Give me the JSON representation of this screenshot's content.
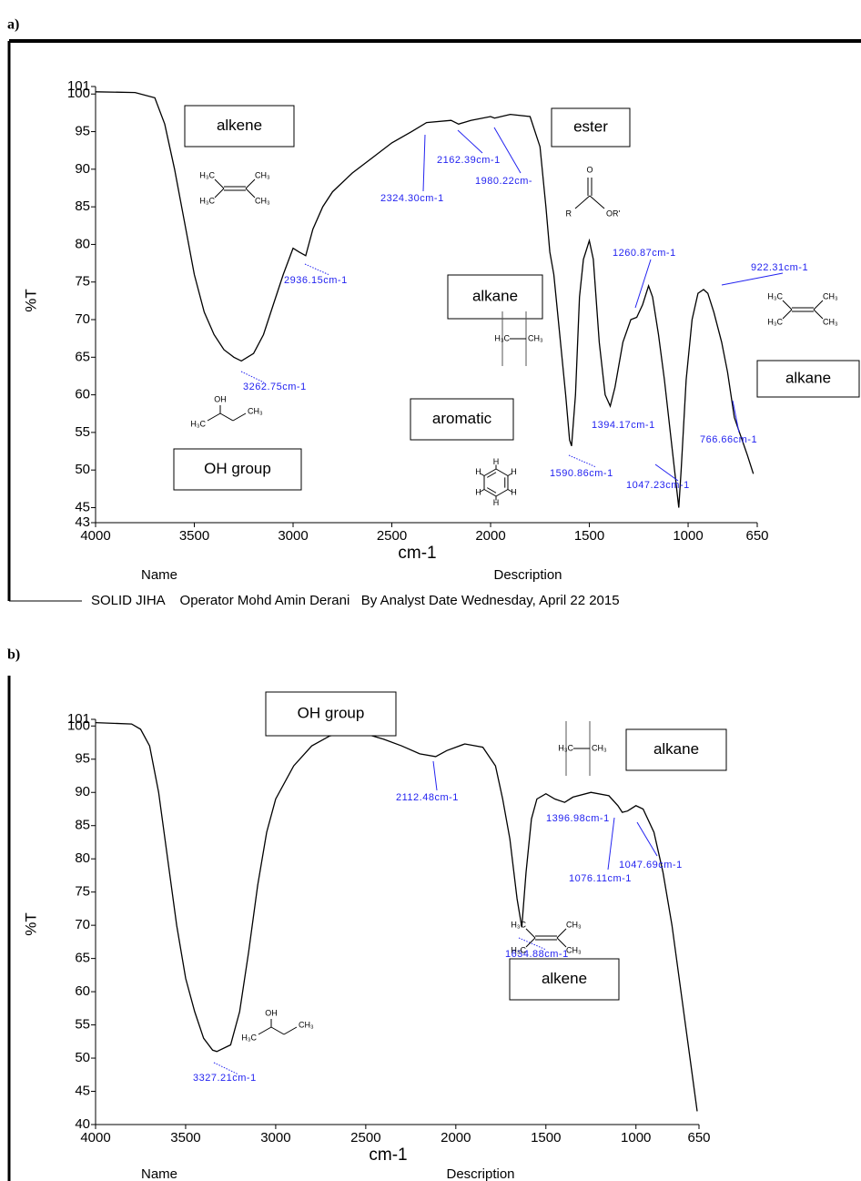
{
  "chart_data": [
    {
      "type": "line",
      "panel_label": "a)",
      "xlabel": "cm-1",
      "ylabel": "%T",
      "color": "#000000",
      "xlim": [
        4000,
        650
      ],
      "ylim": [
        43,
        101
      ],
      "xticks": [
        4000,
        3500,
        3000,
        2500,
        2000,
        1500,
        1000,
        650
      ],
      "yticks": [
        43,
        45,
        50,
        55,
        60,
        65,
        70,
        75,
        80,
        85,
        90,
        95,
        100,
        101
      ],
      "x": [
        4000,
        3800,
        3700,
        3650,
        3600,
        3550,
        3500,
        3450,
        3400,
        3350,
        3300,
        3262,
        3200,
        3150,
        3100,
        3050,
        3000,
        2970,
        2936,
        2900,
        2850,
        2800,
        2700,
        2600,
        2500,
        2400,
        2324,
        2200,
        2162,
        2100,
        2000,
        1980,
        1900,
        1800,
        1750,
        1720,
        1700,
        1680,
        1650,
        1620,
        1600,
        1590,
        1570,
        1550,
        1530,
        1500,
        1480,
        1450,
        1420,
        1394,
        1370,
        1330,
        1290,
        1260,
        1230,
        1200,
        1180,
        1150,
        1120,
        1090,
        1060,
        1047,
        1035,
        1010,
        980,
        950,
        922,
        900,
        870,
        830,
        800,
        766,
        740,
        700,
        670
      ],
      "values": [
        100.3,
        100.2,
        99.5,
        96,
        90,
        83,
        76,
        71,
        68,
        66,
        65,
        64.5,
        65.5,
        68,
        72,
        76,
        79.5,
        79,
        78.5,
        82,
        85,
        87,
        89.5,
        91.5,
        93.5,
        95,
        96.2,
        96.5,
        96,
        96.5,
        97,
        96.8,
        97.3,
        97,
        93,
        85,
        79,
        76,
        68,
        60,
        54,
        53.2,
        60,
        73,
        78,
        80.5,
        78,
        67,
        60,
        58.5,
        61,
        67,
        70,
        70.3,
        72,
        74.5,
        73,
        68,
        62,
        55,
        48,
        45,
        50,
        62,
        70,
        73.5,
        74,
        73.5,
        71,
        67,
        63,
        57,
        55,
        52,
        49.5
      ],
      "peak_labels": [
        "2936.15cm-1",
        "3262.75cm-1",
        "2324.30cm-1",
        "2162.39cm-1",
        "1980.22cm-",
        "1260.87cm-1",
        "922.31cm-1",
        "1394.17cm-1",
        "1590.86cm-1",
        "1047.23cm-1",
        "766.66cm-1"
      ],
      "boxes": [
        "alkene",
        "ester",
        "alkane",
        "alkane",
        "aromatic",
        "OH group"
      ],
      "structures": [
        [
          "H₃C",
          "CH₃",
          "H₃C",
          "CH₃"
        ],
        [
          "O",
          "R",
          "OR'"
        ],
        [
          "H₃C",
          "CH₃"
        ],
        [
          "H₃C",
          "CH₃",
          "H₃C",
          "CH₃"
        ],
        [
          "OH",
          "H₃C",
          "CH₃"
        ],
        [
          "H",
          "H",
          "H",
          "H",
          "H",
          "H"
        ]
      ],
      "footer_labels": [
        "Name",
        "Description"
      ],
      "footer_text": "SOLID JIHA    Operator Mohd Amin Derani   By Analyst Date Wednesday, April 22 2015"
    },
    {
      "type": "line",
      "panel_label": "b)",
      "xlabel": "cm-1",
      "ylabel": "%T",
      "color": "#000000",
      "xlim": [
        4000,
        650
      ],
      "ylim": [
        40,
        101
      ],
      "xticks": [
        4000,
        3500,
        3000,
        2500,
        2000,
        1500,
        1000,
        650
      ],
      "yticks": [
        40,
        45,
        50,
        55,
        60,
        65,
        70,
        75,
        80,
        85,
        90,
        95,
        100,
        101
      ],
      "x": [
        4000,
        3800,
        3750,
        3700,
        3650,
        3600,
        3550,
        3500,
        3450,
        3400,
        3350,
        3327,
        3250,
        3200,
        3150,
        3100,
        3050,
        3000,
        2900,
        2800,
        2700,
        2600,
        2500,
        2400,
        2300,
        2200,
        2112,
        2050,
        1950,
        1850,
        1780,
        1740,
        1700,
        1660,
        1634,
        1610,
        1580,
        1550,
        1500,
        1450,
        1396,
        1350,
        1250,
        1150,
        1100,
        1076,
        1047,
        1000,
        960,
        900,
        850,
        800,
        750,
        700,
        660
      ],
      "values": [
        100.5,
        100.3,
        99.5,
        97,
        90,
        80,
        70,
        62,
        57,
        53,
        51.2,
        51,
        52,
        57,
        66,
        76,
        84,
        89,
        94,
        97,
        98.5,
        99,
        98.8,
        98,
        97,
        95.8,
        95.4,
        96.3,
        97.3,
        96.8,
        94,
        89,
        83,
        74,
        69.7,
        78,
        86,
        89,
        89.8,
        89,
        88.5,
        89.3,
        90,
        89.5,
        88,
        87,
        87.2,
        88,
        87.5,
        84,
        78,
        70,
        60,
        50,
        42
      ],
      "peak_labels": [
        "2112.48cm-1",
        "1396.98cm-1",
        "1047.69cm-1",
        "1076.11cm-1",
        "1634.88cm-1",
        "3327.21cm-1"
      ],
      "boxes": [
        "alkane",
        "OH group",
        "alkene"
      ],
      "structures": [
        [
          "H₃C",
          "CH₃"
        ],
        [
          "OH",
          "H₃C",
          "CH₃"
        ],
        [
          "H₃C",
          "CH₃",
          "H₃C",
          "CH₃"
        ]
      ],
      "footer_labels": [
        "Name",
        "Description"
      ]
    }
  ]
}
